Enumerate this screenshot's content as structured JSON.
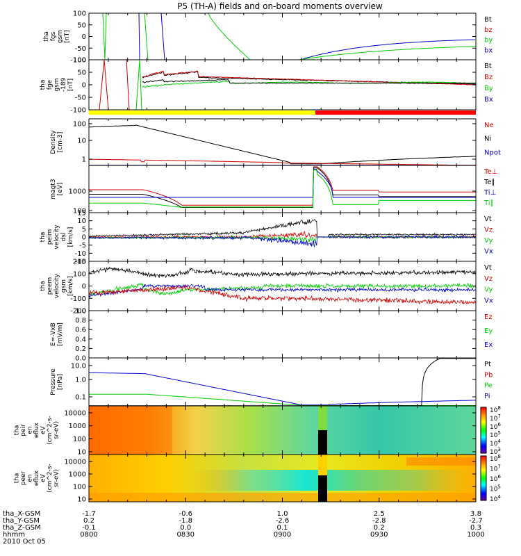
{
  "title": "P5 (TH-A) fields and on-board moments overview",
  "colors": {
    "black": "#000000",
    "red": "#cc0000",
    "green": "#00cc00",
    "blue": "#0000cc",
    "yellow": "#ffff00",
    "barred": "#ff0000"
  },
  "chart_data": [
    {
      "type": "line",
      "id": "fgs",
      "ylabel": [
        "tha",
        "fgs",
        "gsm",
        "[nT]"
      ],
      "ylim": [
        -100,
        100
      ],
      "yticks": [
        "100",
        "50",
        "0",
        "-50",
        "-100"
      ],
      "legend": [
        {
          "name": "Bt",
          "color": "black"
        },
        {
          "name": "bz",
          "color": "red"
        },
        {
          "name": "by",
          "color": "green"
        },
        {
          "name": "bx",
          "color": "blue"
        }
      ]
    },
    {
      "type": "line",
      "id": "fge",
      "ylabel": [
        "tha",
        "fge",
        "gsm",
        "-189",
        "[nT]"
      ],
      "ylim": [
        -120,
        120
      ],
      "yticks": [
        "100",
        "50",
        "0",
        "-50",
        "-100"
      ],
      "legend": [
        {
          "name": "Bt",
          "color": "black"
        },
        {
          "name": "Bz",
          "color": "red"
        },
        {
          "name": "By",
          "color": "green"
        },
        {
          "name": "Bx",
          "color": "blue"
        }
      ]
    },
    {
      "type": "line",
      "id": "density",
      "ylabel": [
        "Density",
        "[cm-3]"
      ],
      "scale": "log",
      "ylim": [
        0.8,
        150
      ],
      "yticks": [
        "100",
        "10",
        "1"
      ],
      "legend": [
        {
          "name": "Ne",
          "color": "red"
        },
        {
          "name": "Ni",
          "color": "black"
        },
        {
          "name": "Npot",
          "color": "blue"
        }
      ]
    },
    {
      "type": "line",
      "id": "temp",
      "ylabel": [
        "magt3",
        "[eV]"
      ],
      "scale": "log",
      "ylim": [
        100,
        4000
      ],
      "yticks": [
        "1000",
        "100"
      ],
      "legend": [
        {
          "name": "Te⊥",
          "color": "red"
        },
        {
          "name": "Te∥",
          "color": "black"
        },
        {
          "name": "Ti⊥",
          "color": "blue"
        },
        {
          "name": "Ti∥",
          "color": "green"
        }
      ]
    },
    {
      "type": "line",
      "id": "peim",
      "ylabel": [
        "tha",
        "peim",
        "velocity",
        "dsl",
        "[km/s]"
      ],
      "ylim": [
        -15,
        15
      ],
      "yticks": [
        "15",
        "10",
        "5",
        "0",
        "-5",
        "-10",
        "-15"
      ],
      "legend": [
        {
          "name": "Vt",
          "color": "black"
        },
        {
          "name": "Vz",
          "color": "red"
        },
        {
          "name": "Vy",
          "color": "green"
        },
        {
          "name": "Vx",
          "color": "blue"
        }
      ]
    },
    {
      "type": "line",
      "id": "peem",
      "ylabel": [
        "tha",
        "peem",
        "velocity",
        "gsm",
        "[km/s]"
      ],
      "ylim": [
        -200,
        200
      ],
      "yticks": [
        "200",
        "100",
        "0",
        "-100",
        "-200"
      ],
      "legend": [
        {
          "name": "Vt",
          "color": "black"
        },
        {
          "name": "Vz",
          "color": "red"
        },
        {
          "name": "Vy",
          "color": "green"
        },
        {
          "name": "Vx",
          "color": "blue"
        }
      ]
    },
    {
      "type": "line",
      "id": "efield",
      "ylabel": [
        "E=-VxB",
        "[mV/m]"
      ],
      "ylim": [
        0,
        1
      ],
      "yticks": [
        "1.0",
        "0.8",
        "0.6",
        "0.4",
        "0.2",
        "0.0"
      ],
      "legend": [
        {
          "name": "Ez",
          "color": "red"
        },
        {
          "name": "Ey",
          "color": "green"
        },
        {
          "name": "Ex",
          "color": "blue"
        }
      ]
    },
    {
      "type": "line",
      "id": "pressure",
      "ylabel": [
        "Pressure",
        "[nPa]"
      ],
      "scale": "log",
      "ylim": [
        0.05,
        15
      ],
      "yticks": [
        "10.0",
        "1.0",
        "0.1"
      ],
      "legend": [
        {
          "name": "Pt",
          "color": "black"
        },
        {
          "name": "Pb",
          "color": "red"
        },
        {
          "name": "Pe",
          "color": "green"
        },
        {
          "name": "Pi",
          "color": "blue"
        }
      ]
    },
    {
      "type": "heatmap",
      "id": "peir",
      "ylabel": [
        "tha",
        "peir",
        "en",
        "eflux",
        "eV",
        "(cm^2-s-",
        "sr-eV)"
      ],
      "yticks": [
        "10000",
        "1000",
        "100",
        "10"
      ],
      "colorbar": [
        "10^8",
        "10^7",
        "10^6",
        "10^5",
        "10^4",
        "10^3"
      ]
    },
    {
      "type": "heatmap",
      "id": "peer",
      "ylabel": [
        "tha",
        "peer",
        "en",
        "eflux",
        "eV",
        "(cm^2-s-",
        "sr-eV)"
      ],
      "yticks": [
        "10000",
        "1000",
        "100",
        "10"
      ],
      "colorbar": [
        "10^8",
        "10^7",
        "10^6",
        "10^5",
        "10^4"
      ]
    }
  ],
  "xaxis": {
    "rows": [
      {
        "label": "tha_X-GSM",
        "values": [
          "-1.7",
          "-0.6",
          "1.0",
          "2.5",
          "3.8"
        ]
      },
      {
        "label": "tha_Y-GSM",
        "values": [
          "0.2",
          "-1.8",
          "-2.6",
          "-2.8",
          "-2.7"
        ]
      },
      {
        "label": "tha_Z-GSM",
        "values": [
          "-0.1",
          "0.0",
          "0.1",
          "0.2",
          "0.3"
        ]
      },
      {
        "label": "hhmm",
        "values": [
          "0800",
          "0830",
          "0900",
          "0930",
          "1000"
        ]
      }
    ],
    "date": "2010 Oct 05"
  }
}
